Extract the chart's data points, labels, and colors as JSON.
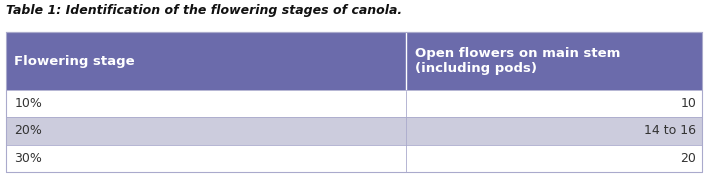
{
  "title": "Table 1: Identification of the flowering stages of canola.",
  "col_headers": [
    "Flowering stage",
    "Open flowers on main stem\n(including pods)"
  ],
  "rows": [
    [
      "10%",
      "10"
    ],
    [
      "20%",
      "14 to 16"
    ],
    [
      "30%",
      "20"
    ]
  ],
  "header_bg": "#6b6bab",
  "row_bg_1": "#ffffff",
  "row_bg_2": "#ccccdd",
  "row_bg_3": "#ffffff",
  "header_text_color": "#ffffff",
  "row_text_color": "#333333",
  "title_color": "#111111",
  "border_color": "#aaaacc",
  "col_split": 0.575,
  "title_fontsize": 9.0,
  "header_fontsize": 9.5,
  "row_fontsize": 9.0,
  "fig_bg": "#ffffff",
  "table_bg": "#ffffff"
}
